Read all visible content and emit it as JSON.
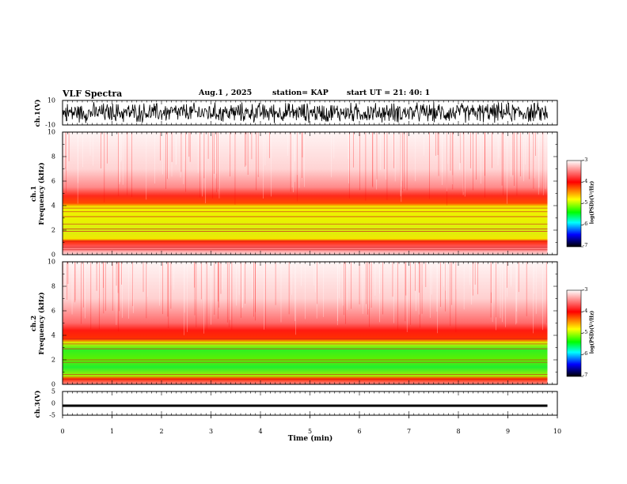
{
  "header": {
    "title": "VLF Spectra",
    "date": "Aug.1  , 2025",
    "station": "station= KAP",
    "start_ut": "start  UT  =   21: 40: 1"
  },
  "colorbar": {
    "ticks": [
      "-3",
      "-4",
      "-5",
      "-6",
      "-7"
    ],
    "label": "log(PSD)(V²/Hz)",
    "colors": [
      "#ffffff",
      "#ff0000",
      "#ffff00",
      "#00ff00",
      "#00ffff",
      "#0000ff",
      "#000000"
    ]
  },
  "chart_data": [
    {
      "type": "line",
      "name": "ch1-waveform",
      "ylabel": "ch.1(V)",
      "ylim": [
        -10,
        10
      ],
      "yticks": [
        "10",
        "-10"
      ],
      "description_values": {
        "amplitude_range_v": [
          -10,
          10
        ]
      }
    },
    {
      "type": "heatmap",
      "name": "ch1-spectrogram",
      "ylabel": "ch.1\nFrequency (kHz)",
      "ylabel_line1": "ch.1",
      "ylabel_line2": "Frequency  (kHz)",
      "ylim": [
        0,
        10
      ],
      "yticks": [
        "10",
        "8",
        "6",
        "4",
        "2",
        "0"
      ],
      "intensity_bands": [
        {
          "from_khz": 0.0,
          "to_khz": 0.8,
          "level": "white-red"
        },
        {
          "from_khz": 0.8,
          "to_khz": 1.3,
          "level": "red"
        },
        {
          "from_khz": 1.3,
          "to_khz": 3.9,
          "level": "yellow-green"
        },
        {
          "from_khz": 3.9,
          "to_khz": 5.0,
          "level": "red"
        },
        {
          "from_khz": 5.0,
          "to_khz": 10.0,
          "level": "pink-white"
        }
      ],
      "lines_khz": [
        0.4,
        0.6,
        1.1,
        1.9,
        2.1,
        2.5,
        3.1,
        3.5,
        3.8
      ]
    },
    {
      "type": "heatmap",
      "name": "ch2-spectrogram",
      "ylabel_line1": "ch.2",
      "ylabel_line2": "Frequency  (kHz)",
      "ylim": [
        0,
        10
      ],
      "yticks": [
        "10",
        "8",
        "6",
        "4",
        "2",
        "0"
      ],
      "intensity_bands": [
        {
          "from_khz": 0.0,
          "to_khz": 0.6,
          "level": "red"
        },
        {
          "from_khz": 0.6,
          "to_khz": 3.5,
          "level": "green-yellow"
        },
        {
          "from_khz": 3.5,
          "to_khz": 4.5,
          "level": "red"
        },
        {
          "from_khz": 4.5,
          "to_khz": 10.0,
          "level": "pink-white"
        }
      ],
      "lines_khz": [
        0.4,
        0.8,
        1.8,
        2.0,
        2.9,
        3.3,
        3.7
      ]
    },
    {
      "type": "line",
      "name": "ch3-waveform",
      "ylabel": "ch.3(V)",
      "ylim": [
        -5,
        5
      ],
      "yticks": [
        "5",
        "0",
        "-5"
      ],
      "description_values": {
        "band_v": [
          -1.5,
          -0.5
        ]
      }
    }
  ],
  "xaxis": {
    "label": "Time  (min)",
    "range": [
      0,
      10
    ],
    "ticks": [
      "0",
      "1",
      "2",
      "3",
      "4",
      "5",
      "6",
      "7",
      "8",
      "9",
      "10"
    ],
    "data_end_min": 9.8
  }
}
